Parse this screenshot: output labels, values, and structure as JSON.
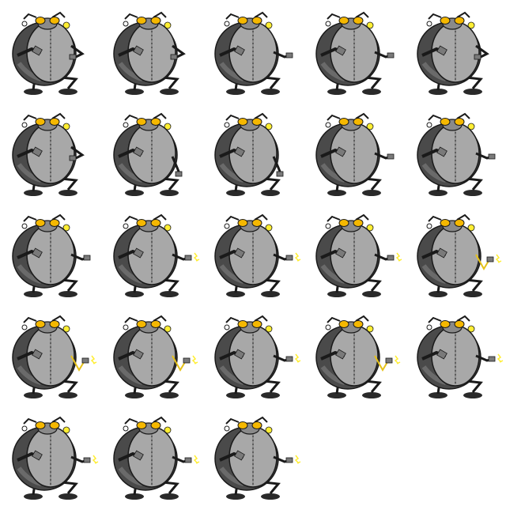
{
  "sheet": {
    "columns": 5,
    "rows": 5,
    "frame_count": 23,
    "background": "#ffffff"
  },
  "colors": {
    "shell_dark": "#4a4a4a",
    "shell_mid": "#6a6a6a",
    "body_light": "#a8a8a8",
    "outline": "#1a1a1a",
    "eye_yellow": "#ffd21a",
    "eye_orange": "#f5b800",
    "spark_yellow": "#ffee33",
    "plug_gray": "#7a7a7a",
    "cord_yellow": "#e6c21a"
  },
  "frames": [
    {
      "index": 1,
      "pose": "hand-raised",
      "plug": "hand",
      "spark": false
    },
    {
      "index": 2,
      "pose": "hand-raised",
      "plug": "hand",
      "spark": false
    },
    {
      "index": 3,
      "pose": "hand-out",
      "plug": "hand",
      "spark": false
    },
    {
      "index": 4,
      "pose": "hand-out",
      "plug": "hand",
      "spark": false
    },
    {
      "index": 5,
      "pose": "hand-raised",
      "plug": "hand",
      "spark": false
    },
    {
      "index": 6,
      "pose": "hand-raised",
      "plug": "hand",
      "spark": false
    },
    {
      "index": 7,
      "pose": "hand-down",
      "plug": "hand",
      "spark": false
    },
    {
      "index": 8,
      "pose": "hand-down",
      "plug": "hand",
      "spark": false
    },
    {
      "index": 9,
      "pose": "hand-out",
      "plug": "hand",
      "spark": false
    },
    {
      "index": 10,
      "pose": "hand-out",
      "plug": "hand",
      "spark": false
    },
    {
      "index": 11,
      "pose": "hand-out",
      "plug": "hand",
      "spark": false
    },
    {
      "index": 12,
      "pose": "hand-out",
      "plug": "socket",
      "spark": true
    },
    {
      "index": 13,
      "pose": "hand-out",
      "plug": "socket",
      "spark": true
    },
    {
      "index": 14,
      "pose": "hand-out",
      "plug": "socket",
      "spark": true
    },
    {
      "index": 15,
      "pose": "hand-cord",
      "plug": "socket",
      "spark": true
    },
    {
      "index": 16,
      "pose": "hand-cord",
      "plug": "socket",
      "spark": true
    },
    {
      "index": 17,
      "pose": "hand-cord",
      "plug": "socket",
      "spark": true
    },
    {
      "index": 18,
      "pose": "hand-out",
      "plug": "socket",
      "spark": true
    },
    {
      "index": 19,
      "pose": "hand-cord",
      "plug": "socket",
      "spark": true
    },
    {
      "index": 20,
      "pose": "hand-out",
      "plug": "socket",
      "spark": true
    },
    {
      "index": 21,
      "pose": "hand-out",
      "plug": "socket",
      "spark": true
    },
    {
      "index": 22,
      "pose": "hand-out",
      "plug": "socket",
      "spark": true
    },
    {
      "index": 23,
      "pose": "hand-out",
      "plug": "socket",
      "spark": true
    }
  ]
}
